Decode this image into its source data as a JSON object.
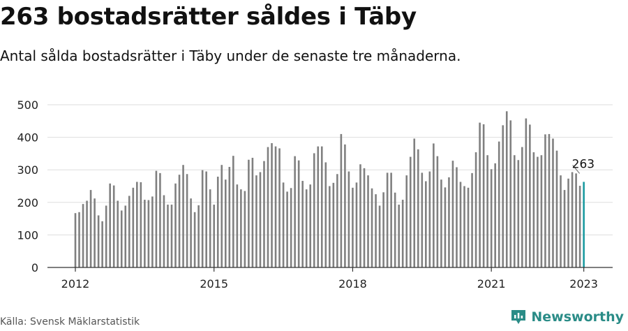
{
  "header": {
    "title": "263 bostadsrätter såldes i Täby",
    "subtitle": "Antal sålda bostadsrätter i Täby under de senaste tre månaderna."
  },
  "footer": {
    "source": "Källa: Svensk Mäklarstatistik",
    "brand": "Newsworthy"
  },
  "colors": {
    "bar": "#808080",
    "highlight": "#1a9aa0",
    "grid": "#dddddd",
    "brand": "#2a8c87"
  },
  "icons": {
    "brand": "bar-chart-logo-icon"
  },
  "chart_data": {
    "type": "bar",
    "start": "2012-01",
    "x_ticks": [
      "2012",
      "2015",
      "2018",
      "2021",
      "2023"
    ],
    "y_ticks": [
      "0",
      "100",
      "200",
      "300",
      "400",
      "500"
    ],
    "ylim": [
      0,
      500
    ],
    "grid": true,
    "highlight_label": "263",
    "values": [
      167,
      170,
      195,
      205,
      238,
      212,
      160,
      142,
      190,
      258,
      252,
      205,
      175,
      190,
      220,
      245,
      263,
      262,
      208,
      207,
      218,
      297,
      290,
      222,
      193,
      193,
      258,
      285,
      315,
      287,
      212,
      170,
      191,
      299,
      295,
      240,
      193,
      279,
      315,
      270,
      309,
      343,
      255,
      240,
      235,
      331,
      337,
      283,
      293,
      327,
      370,
      382,
      372,
      366,
      261,
      233,
      244,
      342,
      329,
      266,
      240,
      255,
      351,
      372,
      372,
      323,
      250,
      260,
      287,
      410,
      378,
      295,
      245,
      261,
      317,
      305,
      283,
      243,
      225,
      190,
      231,
      291,
      291,
      230,
      193,
      208,
      283,
      340,
      396,
      363,
      291,
      265,
      295,
      381,
      342,
      270,
      246,
      277,
      328,
      308,
      263,
      250,
      245,
      290,
      354,
      445,
      440,
      345,
      302,
      320,
      387,
      437,
      480,
      452,
      345,
      330,
      370,
      458,
      439,
      354,
      340,
      345,
      409,
      410,
      396,
      359,
      283,
      238,
      273,
      293,
      289,
      251,
      263
    ]
  }
}
